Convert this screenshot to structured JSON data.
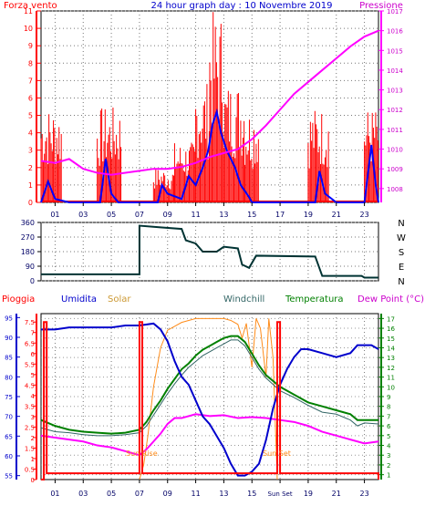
{
  "chart_data": [
    {
      "type": "line",
      "title": "24 hour graph day : 10 Novembre 2019",
      "left_label": "Forza vento",
      "right_label": "Pressione",
      "x_ticks": [
        "01",
        "03",
        "05",
        "07",
        "09",
        "11",
        "13",
        "15",
        "17",
        "19",
        "21",
        "23"
      ],
      "left_ticks": [
        "11",
        "10",
        "9",
        "8",
        "7",
        "6",
        "5",
        "4",
        "3",
        "2",
        "1",
        "0"
      ],
      "right_ticks": [
        "1017",
        "1016",
        "1015",
        "1014",
        "1013",
        "1012",
        "1011",
        "1010",
        "1009",
        "1008"
      ],
      "ylim_left": [
        0,
        11
      ],
      "ylim_right": [
        1007.3,
        1017.0
      ],
      "colors": {
        "gust": "#ff0000",
        "wind": "#0000ff",
        "pressure": "#ff00ff"
      },
      "pressure": [
        [
          0,
          1009.4
        ],
        [
          1,
          1009.3
        ],
        [
          2,
          1009.5
        ],
        [
          3,
          1009.0
        ],
        [
          4,
          1008.8
        ],
        [
          5,
          1008.7
        ],
        [
          6,
          1008.8
        ],
        [
          7,
          1008.9
        ],
        [
          8,
          1009.0
        ],
        [
          9,
          1009.0
        ],
        [
          10,
          1009.1
        ],
        [
          11,
          1009.3
        ],
        [
          12,
          1009.6
        ],
        [
          13,
          1009.8
        ],
        [
          14,
          1010.0
        ],
        [
          15,
          1010.5
        ],
        [
          16,
          1011.2
        ],
        [
          17,
          1012.0
        ],
        [
          18,
          1012.8
        ],
        [
          19,
          1013.4
        ],
        [
          20,
          1014.0
        ],
        [
          21,
          1014.6
        ],
        [
          22,
          1015.2
        ],
        [
          23,
          1015.7
        ],
        [
          24,
          1016.0
        ]
      ],
      "wind_avg": [
        [
          0,
          0
        ],
        [
          0.5,
          1.2
        ],
        [
          1,
          0.2
        ],
        [
          2,
          0
        ],
        [
          4.2,
          0
        ],
        [
          4.6,
          2.5
        ],
        [
          5,
          0.5
        ],
        [
          5.5,
          0
        ],
        [
          8.3,
          0
        ],
        [
          8.6,
          1
        ],
        [
          9,
          0.5
        ],
        [
          10,
          0.2
        ],
        [
          10.5,
          1.5
        ],
        [
          11,
          1
        ],
        [
          11.5,
          2
        ],
        [
          11.9,
          3
        ],
        [
          12.2,
          4.5
        ],
        [
          12.5,
          5.2
        ],
        [
          12.8,
          4
        ],
        [
          13.2,
          3
        ],
        [
          13.8,
          2
        ],
        [
          14.2,
          1
        ],
        [
          14.8,
          0.3
        ],
        [
          15,
          0
        ],
        [
          19.5,
          0
        ],
        [
          19.8,
          1.8
        ],
        [
          20.2,
          0.5
        ],
        [
          21,
          0
        ],
        [
          23,
          0
        ],
        [
          23.5,
          3.3
        ],
        [
          23.8,
          1
        ],
        [
          24,
          0
        ]
      ],
      "gust_spans": [
        [
          0,
          1.5,
          5.5
        ],
        [
          4,
          5.7,
          5.5
        ],
        [
          8,
          9.5,
          2
        ],
        [
          9.5,
          11,
          3.5
        ],
        [
          11,
          12,
          7
        ],
        [
          12,
          13,
          11
        ],
        [
          13,
          14.5,
          7
        ],
        [
          14.5,
          15.5,
          5.5
        ],
        [
          19,
          20.5,
          5.5
        ],
        [
          23,
          24,
          5.5
        ]
      ]
    },
    {
      "type": "line",
      "left_ticks": [
        "360",
        "270",
        "180",
        "90",
        "0"
      ],
      "right_labels": [
        "N",
        "W",
        "S",
        "E",
        "N"
      ],
      "ylim": [
        0,
        360
      ],
      "color": "#003333",
      "direction": [
        [
          0,
          40
        ],
        [
          7,
          40
        ],
        [
          7,
          340
        ],
        [
          8.5,
          330
        ],
        [
          10,
          320
        ],
        [
          10.3,
          250
        ],
        [
          11,
          230
        ],
        [
          11.5,
          180
        ],
        [
          12.5,
          180
        ],
        [
          13,
          210
        ],
        [
          14,
          200
        ],
        [
          14.3,
          100
        ],
        [
          14.8,
          80
        ],
        [
          15.3,
          155
        ],
        [
          19.5,
          150
        ],
        [
          20,
          30
        ],
        [
          22.8,
          30
        ],
        [
          23,
          20
        ],
        [
          24,
          20
        ]
      ]
    },
    {
      "type": "line",
      "labels": {
        "pioggia": "Pioggia",
        "umidita": "Umidita",
        "solar": "Solar",
        "windchill": "Windchill",
        "temperatura": "Temperatura",
        "dewpoint": "Dew Point (°C)"
      },
      "left_ticks_blue": [
        "95",
        "90",
        "85",
        "80",
        "75",
        "70",
        "65",
        "60",
        "55"
      ],
      "left_ticks_red": [
        "7.5",
        "7",
        "6.5",
        "6",
        "5.5",
        "5",
        "4.5",
        "4",
        "3.5",
        "3",
        "2.5",
        "2",
        "1.5",
        "1",
        "0.5",
        "0"
      ],
      "right_ticks": [
        "17",
        "16",
        "15",
        "14",
        "13",
        "12",
        "11",
        "10",
        "9",
        "8",
        "7",
        "6",
        "5",
        "4",
        "3",
        "2",
        "1"
      ],
      "x_ticks": [
        "01",
        "03",
        "05",
        "07",
        "09",
        "11",
        "13",
        "15",
        "Sun Set",
        "19",
        "21",
        "23"
      ],
      "sun_rise_label": "Sun Rise",
      "sun_set_label": "Sun Set",
      "ylim_humidity": [
        54,
        96
      ],
      "ylim_temp": [
        0.5,
        17.5
      ],
      "colors": {
        "rain": "#ff0000",
        "humidity": "#0000cc",
        "solar": "#ff8c1a",
        "windchill": "#336666",
        "temperature": "#008000",
        "dewpoint": "#ff00ff"
      },
      "rain": [
        [
          0,
          0
        ],
        [
          0.2,
          0
        ],
        [
          0.2,
          7.5
        ],
        [
          0.4,
          7.5
        ],
        [
          0.4,
          0.3
        ],
        [
          7,
          0.3
        ],
        [
          7,
          7.5
        ],
        [
          7.2,
          7.5
        ],
        [
          7.2,
          0.3
        ],
        [
          16.8,
          0.3
        ],
        [
          16.8,
          7.5
        ],
        [
          17,
          7.5
        ],
        [
          17,
          0.3
        ],
        [
          24,
          0.3
        ],
        [
          24,
          0
        ]
      ],
      "humidity": [
        [
          0,
          92
        ],
        [
          1,
          92
        ],
        [
          2,
          92.5
        ],
        [
          5,
          92.5
        ],
        [
          6,
          93
        ],
        [
          7,
          93
        ],
        [
          8,
          93.5
        ],
        [
          8.5,
          92
        ],
        [
          9,
          89
        ],
        [
          9.5,
          84
        ],
        [
          10,
          80
        ],
        [
          10.5,
          78
        ],
        [
          11,
          74
        ],
        [
          11.5,
          70
        ],
        [
          12,
          68
        ],
        [
          12.5,
          65
        ],
        [
          13,
          62
        ],
        [
          13.5,
          58
        ],
        [
          14,
          55
        ],
        [
          14.5,
          55
        ],
        [
          15,
          56
        ],
        [
          15.5,
          58
        ],
        [
          16,
          64
        ],
        [
          16.5,
          72
        ],
        [
          17,
          78
        ],
        [
          17.5,
          82
        ],
        [
          18,
          85
        ],
        [
          18.5,
          87
        ],
        [
          19,
          87
        ],
        [
          20,
          86
        ],
        [
          21,
          85
        ],
        [
          22,
          86
        ],
        [
          22.5,
          88
        ],
        [
          23,
          88
        ],
        [
          23.5,
          88
        ],
        [
          24,
          87
        ]
      ],
      "temperature": [
        [
          0,
          6.6
        ],
        [
          1,
          6.0
        ],
        [
          2,
          5.6
        ],
        [
          3,
          5.4
        ],
        [
          4,
          5.3
        ],
        [
          5,
          5.2
        ],
        [
          6,
          5.3
        ],
        [
          7,
          5.6
        ],
        [
          7.5,
          6.4
        ],
        [
          8,
          7.6
        ],
        [
          8.5,
          8.6
        ],
        [
          9,
          9.8
        ],
        [
          9.5,
          10.8
        ],
        [
          10,
          11.8
        ],
        [
          10.5,
          12.4
        ],
        [
          11,
          13.2
        ],
        [
          11.5,
          13.8
        ],
        [
          12,
          14.2
        ],
        [
          12.5,
          14.6
        ],
        [
          13,
          15.0
        ],
        [
          13.5,
          15.2
        ],
        [
          14,
          15.2
        ],
        [
          14.5,
          14.6
        ],
        [
          15,
          13.4
        ],
        [
          15.5,
          12.2
        ],
        [
          16,
          11.2
        ],
        [
          17,
          10.0
        ],
        [
          18,
          9.2
        ],
        [
          19,
          8.4
        ],
        [
          20,
          8.0
        ],
        [
          21,
          7.6
        ],
        [
          22,
          7.2
        ],
        [
          22.5,
          6.6
        ],
        [
          23,
          6.6
        ],
        [
          24,
          6.6
        ]
      ],
      "dewpoint": [
        [
          0,
          5.0
        ],
        [
          1,
          4.8
        ],
        [
          2,
          4.6
        ],
        [
          3,
          4.4
        ],
        [
          4,
          4.0
        ],
        [
          5,
          3.8
        ],
        [
          6,
          3.4
        ],
        [
          7,
          3.0
        ],
        [
          7.5,
          3.6
        ],
        [
          8,
          4.4
        ],
        [
          8.5,
          5.2
        ],
        [
          9,
          6.2
        ],
        [
          9.5,
          6.8
        ],
        [
          10,
          6.8
        ],
        [
          11,
          7.2
        ],
        [
          12,
          7.0
        ],
        [
          13,
          7.1
        ],
        [
          14,
          6.8
        ],
        [
          15,
          6.9
        ],
        [
          16,
          6.8
        ],
        [
          17,
          6.6
        ],
        [
          18,
          6.4
        ],
        [
          19,
          6.0
        ],
        [
          20,
          5.4
        ],
        [
          21,
          5.0
        ],
        [
          22,
          4.6
        ],
        [
          23,
          4.2
        ],
        [
          24,
          4.4
        ]
      ],
      "windchill": [
        [
          0,
          5.8
        ],
        [
          1,
          5.4
        ],
        [
          2,
          5.3
        ],
        [
          3,
          5.1
        ],
        [
          4,
          5.0
        ],
        [
          5,
          5.0
        ],
        [
          6,
          5.1
        ],
        [
          7,
          5.3
        ],
        [
          7.5,
          6.0
        ],
        [
          8,
          7.1
        ],
        [
          8.5,
          8.2
        ],
        [
          9,
          9.3
        ],
        [
          9.5,
          10.3
        ],
        [
          10,
          11.2
        ],
        [
          10.5,
          12.0
        ],
        [
          11,
          12.6
        ],
        [
          11.5,
          13.2
        ],
        [
          12,
          13.6
        ],
        [
          12.5,
          14.0
        ],
        [
          13,
          14.4
        ],
        [
          13.5,
          14.8
        ],
        [
          14,
          14.8
        ],
        [
          14.5,
          14.2
        ],
        [
          15,
          13.0
        ],
        [
          15.5,
          11.8
        ],
        [
          16,
          10.9
        ],
        [
          17,
          9.6
        ],
        [
          18,
          8.9
        ],
        [
          19,
          8.1
        ],
        [
          20,
          7.4
        ],
        [
          21,
          7.2
        ],
        [
          22,
          6.6
        ],
        [
          22.5,
          6.0
        ],
        [
          23,
          6.3
        ],
        [
          24,
          6.2
        ]
      ],
      "solar": [
        [
          7,
          0.5
        ],
        [
          7.3,
          2
        ],
        [
          7.6,
          5
        ],
        [
          8,
          10
        ],
        [
          8.5,
          14
        ],
        [
          9,
          15.8
        ],
        [
          10,
          16.6
        ],
        [
          11,
          17
        ],
        [
          12,
          17
        ],
        [
          12.5,
          17
        ],
        [
          13,
          17
        ],
        [
          13.5,
          16.8
        ],
        [
          14,
          16.4
        ],
        [
          14.3,
          15
        ],
        [
          14.6,
          16.5
        ],
        [
          15,
          12
        ],
        [
          15.3,
          17
        ],
        [
          15.6,
          16
        ],
        [
          16,
          11
        ],
        [
          16.2,
          17
        ],
        [
          16.5,
          13
        ],
        [
          16.8,
          0.5
        ]
      ]
    }
  ]
}
